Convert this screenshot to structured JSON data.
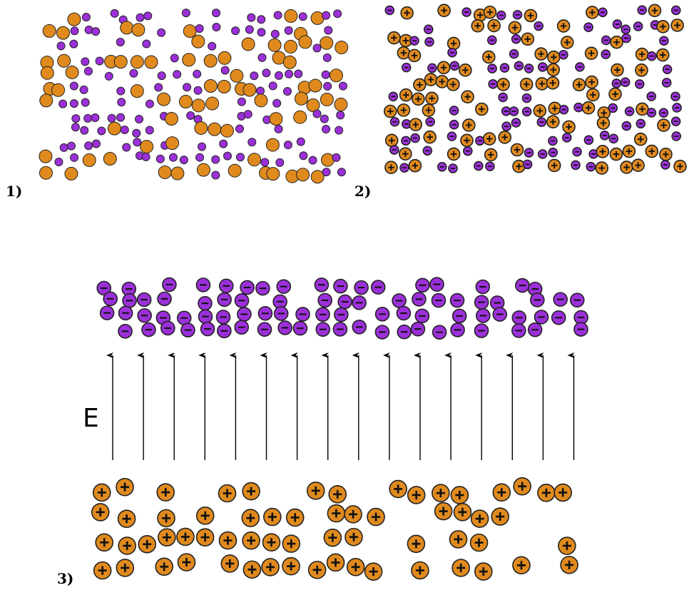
{
  "panels": [
    {
      "label": "1)"
    },
    {
      "label": "2)"
    },
    {
      "label": "3)",
      "field_label": "E"
    }
  ]
}
